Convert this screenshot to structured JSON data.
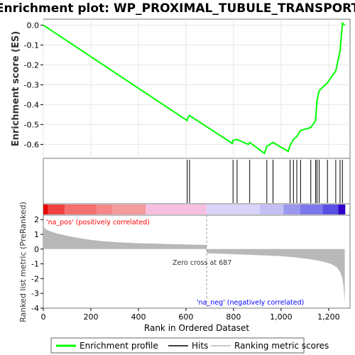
{
  "chart_data": {
    "type": "line",
    "title": "Enrichment plot: WP_PROXIMAL_TUBULE_TRANSPORT",
    "ylabel_top": "Enrichment score (ES)",
    "ylabel_bottom": "Ranked list metric (PreRanked)",
    "xlabel": "Rank in Ordered Dataset",
    "xlim": [
      0,
      1290
    ],
    "es_ylim": [
      -0.67,
      0.03
    ],
    "es_yticks": [
      0.0,
      -0.1,
      -0.2,
      -0.3,
      -0.4,
      -0.5,
      -0.6
    ],
    "metric_ylim": [
      -4,
      2.3
    ],
    "metric_yticks": [
      2,
      1,
      0,
      -1,
      -2,
      -3,
      -4
    ],
    "xticks": [
      0,
      200,
      400,
      600,
      800,
      1000,
      1200
    ],
    "xtick_labels": [
      "0",
      "200",
      "400",
      "600",
      "800",
      "1,000",
      "1,200"
    ],
    "es_curve": {
      "x": [
        0,
        605,
        608,
        615,
        795,
        798,
        815,
        862,
        868,
        930,
        940,
        966,
        1030,
        1038,
        1052,
        1066,
        1082,
        1125,
        1145,
        1151,
        1160,
        1195,
        1230,
        1248,
        1258,
        1268
      ],
      "y": [
        0.0,
        -0.48,
        -0.465,
        -0.455,
        -0.595,
        -0.58,
        -0.575,
        -0.6,
        -0.59,
        -0.645,
        -0.61,
        -0.59,
        -0.635,
        -0.605,
        -0.575,
        -0.56,
        -0.53,
        -0.515,
        -0.48,
        -0.38,
        -0.33,
        -0.29,
        -0.23,
        -0.13,
        0.01,
        0.0
      ]
    },
    "hits": [
      605,
      615,
      798,
      815,
      868,
      940,
      966,
      1038,
      1052,
      1066,
      1082,
      1125,
      1145,
      1151,
      1160,
      1195,
      1230,
      1248,
      1258
    ],
    "zero_cross": 687,
    "zero_cross_label": "Zero cross at 687",
    "na_pos_label": "'na_pos' (positively correlated)",
    "na_neg_label": "'na_neg' (negatively correlated)",
    "heatmap_segments": [
      {
        "x0": 0,
        "x1": 20,
        "color": "#e80000"
      },
      {
        "x0": 20,
        "x1": 90,
        "color": "#f04040"
      },
      {
        "x0": 90,
        "x1": 225,
        "color": "#f46f6f"
      },
      {
        "x0": 225,
        "x1": 290,
        "color": "#f48888"
      },
      {
        "x0": 290,
        "x1": 430,
        "color": "#f49b9b"
      },
      {
        "x0": 430,
        "x1": 687,
        "color": "#f8c0e0"
      },
      {
        "x0": 687,
        "x1": 910,
        "color": "#d8d4fa"
      },
      {
        "x0": 910,
        "x1": 1010,
        "color": "#c4c0f4"
      },
      {
        "x0": 1010,
        "x1": 1080,
        "color": "#9a98ee"
      },
      {
        "x0": 1080,
        "x1": 1175,
        "color": "#7c78ec"
      },
      {
        "x0": 1175,
        "x1": 1240,
        "color": "#5a50e4"
      },
      {
        "x0": 1240,
        "x1": 1270,
        "color": "#3000c8"
      }
    ],
    "metric_profile": {
      "x": [
        0,
        10,
        30,
        60,
        100,
        150,
        200,
        260,
        330,
        400,
        480,
        560,
        640,
        686,
        688,
        760,
        840,
        920,
        1000,
        1060,
        1120,
        1170,
        1210,
        1235,
        1250,
        1258,
        1263,
        1266,
        1268
      ],
      "y": [
        1.55,
        1.35,
        1.2,
        1.05,
        0.9,
        0.75,
        0.62,
        0.52,
        0.45,
        0.4,
        0.36,
        0.33,
        0.3,
        0.28,
        -0.28,
        -0.32,
        -0.37,
        -0.42,
        -0.48,
        -0.56,
        -0.68,
        -0.82,
        -1.0,
        -1.25,
        -1.6,
        -2.0,
        -2.6,
        -3.2,
        -3.7
      ]
    },
    "legend": [
      "Enrichment profile",
      "Hits",
      "Ranking metric scores"
    ],
    "colors": {
      "es_line": "#00ff00",
      "hit_line": "#000000",
      "metric_fill": "#b8b8b8",
      "zero_line": "#999999",
      "na_pos": "#ff0000",
      "na_neg": "#0000ff"
    }
  }
}
